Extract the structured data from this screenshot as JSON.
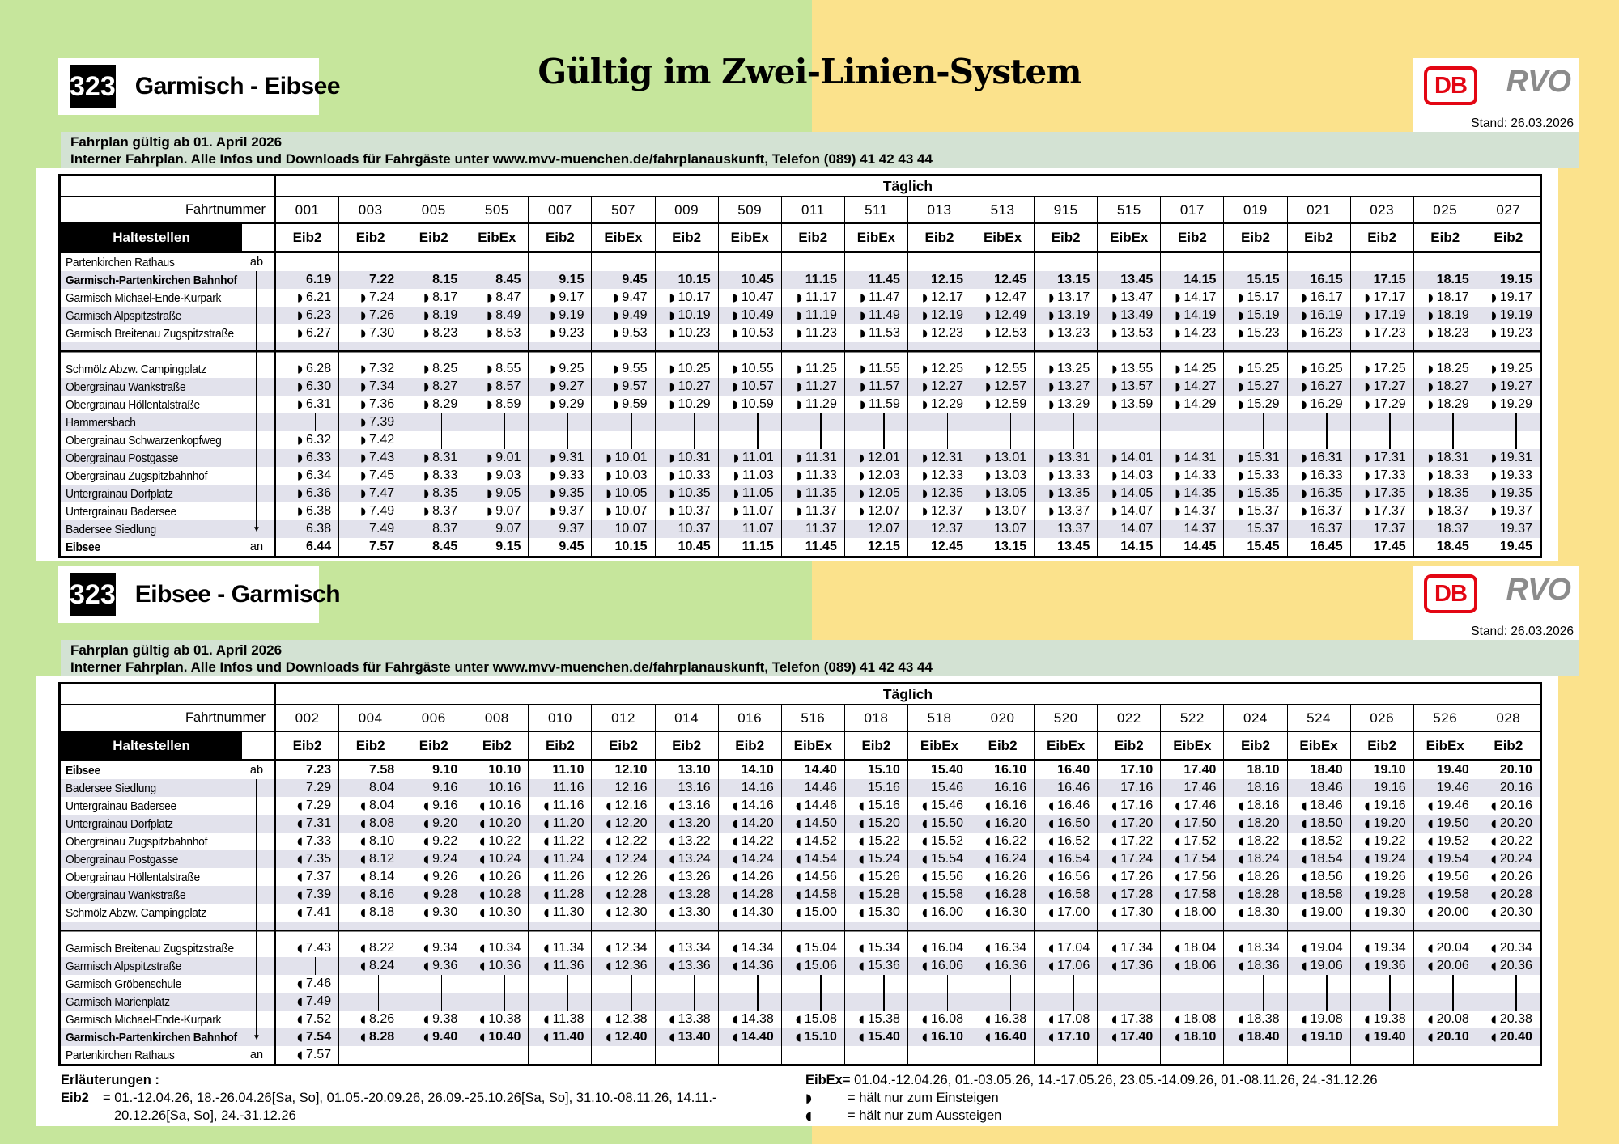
{
  "colors": {
    "green": "#c6e69c",
    "yellow": "#fbe28c",
    "sage": "#d3e2d3",
    "stripe": "#e2e2ec",
    "db_red": "#e30613",
    "rvo_gray": "#8b8b8b"
  },
  "header": {
    "big_title": "Gültig im Zwei-Linien-System"
  },
  "banner1": {
    "route_number": "323",
    "route_name": "Garmisch - Eibsee",
    "db_label": "DB",
    "rvo_label": "RVO",
    "stand": "Stand: 26.03.2026"
  },
  "banner2": {
    "route_number": "323",
    "route_name": "Eibsee - Garmisch",
    "db_label": "DB",
    "rvo_label": "RVO",
    "stand": "Stand: 26.03.2026"
  },
  "infobar": {
    "line1": "Fahrplan gültig ab 01. April 2026",
    "line2": "Interner Fahrplan. Alle Infos und Downloads für Fahrgäste unter www.mvv-muenchen.de/fahrplanauskunft, Telefon (089) 41 42 43 44"
  },
  "table1": {
    "daily_label": "Täglich",
    "fahrtnummer_label": "Fahrtnummer",
    "haltestellen_label": "Haltestellen",
    "trips": [
      "001",
      "003",
      "005",
      "505",
      "007",
      "507",
      "009",
      "509",
      "011",
      "511",
      "013",
      "513",
      "915",
      "515",
      "017",
      "019",
      "021",
      "023",
      "025",
      "027"
    ],
    "types": [
      "Eib2",
      "Eib2",
      "Eib2",
      "EibEx",
      "Eib2",
      "EibEx",
      "Eib2",
      "EibEx",
      "Eib2",
      "EibEx",
      "Eib2",
      "EibEx",
      "Eib2",
      "EibEx",
      "Eib2",
      "Eib2",
      "Eib2",
      "Eib2",
      "Eib2",
      "Eib2"
    ],
    "rows": [
      {
        "name": "Partenkirchen Rathaus",
        "dir": "ab",
        "bold": false,
        "cells": [
          "",
          "",
          "",
          "",
          "",
          "",
          "",
          "",
          "",
          "",
          "",
          "",
          "",
          "",
          "",
          "",
          "",
          "",
          "",
          ""
        ]
      },
      {
        "name": "Garmisch-Partenkirchen Bahnhof",
        "dir": "line",
        "bold": true,
        "cells": [
          "6.19",
          "7.22",
          "8.15",
          "8.45",
          "9.15",
          "9.45",
          "10.15",
          "10.45",
          "11.15",
          "11.45",
          "12.15",
          "12.45",
          "13.15",
          "13.45",
          "14.15",
          "15.15",
          "16.15",
          "17.15",
          "18.15",
          "19.15"
        ]
      },
      {
        "name": "Garmisch Michael-Ende-Kurpark",
        "dir": "line",
        "bold": false,
        "cells": [
          "◗6.21",
          "◗7.24",
          "◗8.17",
          "◗8.47",
          "◗9.17",
          "◗9.47",
          "◗10.17",
          "◗10.47",
          "◗11.17",
          "◗11.47",
          "◗12.17",
          "◗12.47",
          "◗13.17",
          "◗13.47",
          "◗14.17",
          "◗15.17",
          "◗16.17",
          "◗17.17",
          "◗18.17",
          "◗19.17"
        ]
      },
      {
        "name": "Garmisch Alpspitzstraße",
        "dir": "line",
        "bold": false,
        "cells": [
          "◗6.23",
          "◗7.26",
          "◗8.19",
          "◗8.49",
          "◗9.19",
          "◗9.49",
          "◗10.19",
          "◗10.49",
          "◗11.19",
          "◗11.49",
          "◗12.19",
          "◗12.49",
          "◗13.19",
          "◗13.49",
          "◗14.19",
          "◗15.19",
          "◗16.19",
          "◗17.19",
          "◗18.19",
          "◗19.19"
        ]
      },
      {
        "name": "Garmisch Breitenau Zugspitzstraße",
        "dir": "line",
        "bold": false,
        "cells": [
          "◗6.27",
          "◗7.30",
          "◗8.23",
          "◗8.53",
          "◗9.23",
          "◗9.53",
          "◗10.23",
          "◗10.53",
          "◗11.23",
          "◗11.53",
          "◗12.23",
          "◗12.53",
          "◗13.23",
          "◗13.53",
          "◗14.23",
          "◗15.23",
          "◗16.23",
          "◗17.23",
          "◗18.23",
          "◗19.23"
        ]
      },
      {
        "sep": true,
        "dir": "line"
      },
      {
        "name": "Schmölz Abzw. Campingplatz",
        "dir": "line",
        "bold": false,
        "cells": [
          "◗6.28",
          "◗7.32",
          "◗8.25",
          "◗8.55",
          "◗9.25",
          "◗9.55",
          "◗10.25",
          "◗10.55",
          "◗11.25",
          "◗11.55",
          "◗12.25",
          "◗12.55",
          "◗13.25",
          "◗13.55",
          "◗14.25",
          "◗15.25",
          "◗16.25",
          "◗17.25",
          "◗18.25",
          "◗19.25"
        ]
      },
      {
        "name": "Obergrainau Wankstraße",
        "dir": "line",
        "bold": false,
        "cells": [
          "◗6.30",
          "◗7.34",
          "◗8.27",
          "◗8.57",
          "◗9.27",
          "◗9.57",
          "◗10.27",
          "◗10.57",
          "◗11.27",
          "◗11.57",
          "◗12.27",
          "◗12.57",
          "◗13.27",
          "◗13.57",
          "◗14.27",
          "◗15.27",
          "◗16.27",
          "◗17.27",
          "◗18.27",
          "◗19.27"
        ]
      },
      {
        "name": "Obergrainau Höllentalstraße",
        "dir": "line",
        "bold": false,
        "cells": [
          "◗6.31",
          "◗7.36",
          "◗8.29",
          "◗8.59",
          "◗9.29",
          "◗9.59",
          "◗10.29",
          "◗10.59",
          "◗11.29",
          "◗11.59",
          "◗12.29",
          "◗12.59",
          "◗13.29",
          "◗13.59",
          "◗14.29",
          "◗15.29",
          "◗16.29",
          "◗17.29",
          "◗18.29",
          "◗19.29"
        ]
      },
      {
        "name": "Hammersbach",
        "dir": "line",
        "bold": false,
        "cells": [
          "|",
          "◗7.39",
          "|",
          "|",
          "|",
          "|",
          "|",
          "|",
          "|",
          "|",
          "|",
          "|",
          "|",
          "|",
          "|",
          "|",
          "|",
          "|",
          "|",
          "|"
        ]
      },
      {
        "name": "Obergrainau Schwarzenkopfweg",
        "dir": "line",
        "bold": false,
        "cells": [
          "◗6.32",
          "◗7.42",
          "|",
          "|",
          "|",
          "|",
          "|",
          "|",
          "|",
          "|",
          "|",
          "|",
          "|",
          "|",
          "|",
          "|",
          "|",
          "|",
          "|",
          "|"
        ]
      },
      {
        "name": "Obergrainau Postgasse",
        "dir": "line",
        "bold": false,
        "cells": [
          "◗6.33",
          "◗7.43",
          "◗8.31",
          "◗9.01",
          "◗9.31",
          "◗10.01",
          "◗10.31",
          "◗11.01",
          "◗11.31",
          "◗12.01",
          "◗12.31",
          "◗13.01",
          "◗13.31",
          "◗14.01",
          "◗14.31",
          "◗15.31",
          "◗16.31",
          "◗17.31",
          "◗18.31",
          "◗19.31"
        ]
      },
      {
        "name": "Obergrainau Zugspitzbahnhof",
        "dir": "line",
        "bold": false,
        "cells": [
          "◗6.34",
          "◗7.45",
          "◗8.33",
          "◗9.03",
          "◗9.33",
          "◗10.03",
          "◗10.33",
          "◗11.03",
          "◗11.33",
          "◗12.03",
          "◗12.33",
          "◗13.03",
          "◗13.33",
          "◗14.03",
          "◗14.33",
          "◗15.33",
          "◗16.33",
          "◗17.33",
          "◗18.33",
          "◗19.33"
        ]
      },
      {
        "name": "Untergrainau Dorfplatz",
        "dir": "line",
        "bold": false,
        "cells": [
          "◗6.36",
          "◗7.47",
          "◗8.35",
          "◗9.05",
          "◗9.35",
          "◗10.05",
          "◗10.35",
          "◗11.05",
          "◗11.35",
          "◗12.05",
          "◗12.35",
          "◗13.05",
          "◗13.35",
          "◗14.05",
          "◗14.35",
          "◗15.35",
          "◗16.35",
          "◗17.35",
          "◗18.35",
          "◗19.35"
        ]
      },
      {
        "name": "Untergrainau Badersee",
        "dir": "line",
        "bold": false,
        "cells": [
          "◗6.38",
          "◗7.49",
          "◗8.37",
          "◗9.07",
          "◗9.37",
          "◗10.07",
          "◗10.37",
          "◗11.07",
          "◗11.37",
          "◗12.07",
          "◗12.37",
          "◗13.07",
          "◗13.37",
          "◗14.07",
          "◗14.37",
          "◗15.37",
          "◗16.37",
          "◗17.37",
          "◗18.37",
          "◗19.37"
        ]
      },
      {
        "name": "Badersee Siedlung",
        "dir": "arrow",
        "bold": false,
        "cells": [
          "6.38",
          "7.49",
          "8.37",
          "9.07",
          "9.37",
          "10.07",
          "10.37",
          "11.07",
          "11.37",
          "12.07",
          "12.37",
          "13.07",
          "13.37",
          "14.07",
          "14.37",
          "15.37",
          "16.37",
          "17.37",
          "18.37",
          "19.37"
        ]
      },
      {
        "name": "Eibsee",
        "dir": "an",
        "bold": true,
        "cells": [
          "6.44",
          "7.57",
          "8.45",
          "9.15",
          "9.45",
          "10.15",
          "10.45",
          "11.15",
          "11.45",
          "12.15",
          "12.45",
          "13.15",
          "13.45",
          "14.15",
          "14.45",
          "15.45",
          "16.45",
          "17.45",
          "18.45",
          "19.45"
        ]
      }
    ]
  },
  "table2": {
    "daily_label": "Täglich",
    "fahrtnummer_label": "Fahrtnummer",
    "haltestellen_label": "Haltestellen",
    "trips": [
      "002",
      "004",
      "006",
      "008",
      "010",
      "012",
      "014",
      "016",
      "516",
      "018",
      "518",
      "020",
      "520",
      "022",
      "522",
      "024",
      "524",
      "026",
      "526",
      "028"
    ],
    "types": [
      "Eib2",
      "Eib2",
      "Eib2",
      "Eib2",
      "Eib2",
      "Eib2",
      "Eib2",
      "Eib2",
      "EibEx",
      "Eib2",
      "EibEx",
      "Eib2",
      "EibEx",
      "Eib2",
      "EibEx",
      "Eib2",
      "EibEx",
      "Eib2",
      "EibEx",
      "Eib2"
    ],
    "rows": [
      {
        "name": "Eibsee",
        "dir": "ab",
        "bold": true,
        "cells": [
          "7.23",
          "7.58",
          "9.10",
          "10.10",
          "11.10",
          "12.10",
          "13.10",
          "14.10",
          "14.40",
          "15.10",
          "15.40",
          "16.10",
          "16.40",
          "17.10",
          "17.40",
          "18.10",
          "18.40",
          "19.10",
          "19.40",
          "20.10"
        ]
      },
      {
        "name": "Badersee Siedlung",
        "dir": "line",
        "bold": false,
        "cells": [
          "7.29",
          "8.04",
          "9.16",
          "10.16",
          "11.16",
          "12.16",
          "13.16",
          "14.16",
          "14.46",
          "15.16",
          "15.46",
          "16.16",
          "16.46",
          "17.16",
          "17.46",
          "18.16",
          "18.46",
          "19.16",
          "19.46",
          "20.16"
        ]
      },
      {
        "name": "Untergrainau Badersee",
        "dir": "line",
        "bold": false,
        "cells": [
          "◖7.29",
          "◖8.04",
          "◖9.16",
          "◖10.16",
          "◖11.16",
          "◖12.16",
          "◖13.16",
          "◖14.16",
          "◖14.46",
          "◖15.16",
          "◖15.46",
          "◖16.16",
          "◖16.46",
          "◖17.16",
          "◖17.46",
          "◖18.16",
          "◖18.46",
          "◖19.16",
          "◖19.46",
          "◖20.16"
        ]
      },
      {
        "name": "Untergrainau Dorfplatz",
        "dir": "line",
        "bold": false,
        "cells": [
          "◖7.31",
          "◖8.08",
          "◖9.20",
          "◖10.20",
          "◖11.20",
          "◖12.20",
          "◖13.20",
          "◖14.20",
          "◖14.50",
          "◖15.20",
          "◖15.50",
          "◖16.20",
          "◖16.50",
          "◖17.20",
          "◖17.50",
          "◖18.20",
          "◖18.50",
          "◖19.20",
          "◖19.50",
          "◖20.20"
        ]
      },
      {
        "name": "Obergrainau Zugspitzbahnhof",
        "dir": "line",
        "bold": false,
        "cells": [
          "◖7.33",
          "◖8.10",
          "◖9.22",
          "◖10.22",
          "◖11.22",
          "◖12.22",
          "◖13.22",
          "◖14.22",
          "◖14.52",
          "◖15.22",
          "◖15.52",
          "◖16.22",
          "◖16.52",
          "◖17.22",
          "◖17.52",
          "◖18.22",
          "◖18.52",
          "◖19.22",
          "◖19.52",
          "◖20.22"
        ]
      },
      {
        "name": "Obergrainau Postgasse",
        "dir": "line",
        "bold": false,
        "cells": [
          "◖7.35",
          "◖8.12",
          "◖9.24",
          "◖10.24",
          "◖11.24",
          "◖12.24",
          "◖13.24",
          "◖14.24",
          "◖14.54",
          "◖15.24",
          "◖15.54",
          "◖16.24",
          "◖16.54",
          "◖17.24",
          "◖17.54",
          "◖18.24",
          "◖18.54",
          "◖19.24",
          "◖19.54",
          "◖20.24"
        ]
      },
      {
        "name": "Obergrainau Höllentalstraße",
        "dir": "line",
        "bold": false,
        "cells": [
          "◖7.37",
          "◖8.14",
          "◖9.26",
          "◖10.26",
          "◖11.26",
          "◖12.26",
          "◖13.26",
          "◖14.26",
          "◖14.56",
          "◖15.26",
          "◖15.56",
          "◖16.26",
          "◖16.56",
          "◖17.26",
          "◖17.56",
          "◖18.26",
          "◖18.56",
          "◖19.26",
          "◖19.56",
          "◖20.26"
        ]
      },
      {
        "name": "Obergrainau Wankstraße",
        "dir": "line",
        "bold": false,
        "cells": [
          "◖7.39",
          "◖8.16",
          "◖9.28",
          "◖10.28",
          "◖11.28",
          "◖12.28",
          "◖13.28",
          "◖14.28",
          "◖14.58",
          "◖15.28",
          "◖15.58",
          "◖16.28",
          "◖16.58",
          "◖17.28",
          "◖17.58",
          "◖18.28",
          "◖18.58",
          "◖19.28",
          "◖19.58",
          "◖20.28"
        ]
      },
      {
        "name": "Schmölz Abzw. Campingplatz",
        "dir": "line",
        "bold": false,
        "cells": [
          "◖7.41",
          "◖8.18",
          "◖9.30",
          "◖10.30",
          "◖11.30",
          "◖12.30",
          "◖13.30",
          "◖14.30",
          "◖15.00",
          "◖15.30",
          "◖16.00",
          "◖16.30",
          "◖17.00",
          "◖17.30",
          "◖18.00",
          "◖18.30",
          "◖19.00",
          "◖19.30",
          "◖20.00",
          "◖20.30"
        ]
      },
      {
        "sep": true,
        "dir": "line"
      },
      {
        "name": "Garmisch Breitenau Zugspitzstraße",
        "dir": "line",
        "bold": false,
        "cells": [
          "◖7.43",
          "◖8.22",
          "◖9.34",
          "◖10.34",
          "◖11.34",
          "◖12.34",
          "◖13.34",
          "◖14.34",
          "◖15.04",
          "◖15.34",
          "◖16.04",
          "◖16.34",
          "◖17.04",
          "◖17.34",
          "◖18.04",
          "◖18.34",
          "◖19.04",
          "◖19.34",
          "◖20.04",
          "◖20.34"
        ]
      },
      {
        "name": "Garmisch Alpspitzstraße",
        "dir": "line",
        "bold": false,
        "cells": [
          "|",
          "◖8.24",
          "◖9.36",
          "◖10.36",
          "◖11.36",
          "◖12.36",
          "◖13.36",
          "◖14.36",
          "◖15.06",
          "◖15.36",
          "◖16.06",
          "◖16.36",
          "◖17.06",
          "◖17.36",
          "◖18.06",
          "◖18.36",
          "◖19.06",
          "◖19.36",
          "◖20.06",
          "◖20.36"
        ]
      },
      {
        "name": "Garmisch Gröbenschule",
        "dir": "line",
        "bold": false,
        "cells": [
          "◖7.46",
          "|",
          "|",
          "|",
          "|",
          "|",
          "|",
          "|",
          "|",
          "|",
          "|",
          "|",
          "|",
          "|",
          "|",
          "|",
          "|",
          "|",
          "|",
          "|"
        ]
      },
      {
        "name": "Garmisch Marienplatz",
        "dir": "line",
        "bold": false,
        "cells": [
          "◖7.49",
          "|",
          "|",
          "|",
          "|",
          "|",
          "|",
          "|",
          "|",
          "|",
          "|",
          "|",
          "|",
          "|",
          "|",
          "|",
          "|",
          "|",
          "|",
          "|"
        ]
      },
      {
        "name": "Garmisch Michael-Ende-Kurpark",
        "dir": "line",
        "bold": false,
        "cells": [
          "◖7.52",
          "◖8.26",
          "◖9.38",
          "◖10.38",
          "◖11.38",
          "◖12.38",
          "◖13.38",
          "◖14.38",
          "◖15.08",
          "◖15.38",
          "◖16.08",
          "◖16.38",
          "◖17.08",
          "◖17.38",
          "◖18.08",
          "◖18.38",
          "◖19.08",
          "◖19.38",
          "◖20.08",
          "◖20.38"
        ]
      },
      {
        "name": "Garmisch-Partenkirchen Bahnhof",
        "dir": "arrow",
        "bold": true,
        "cells": [
          "◖7.54",
          "◖8.28",
          "◖9.40",
          "◖10.40",
          "◖11.40",
          "◖12.40",
          "◖13.40",
          "◖14.40",
          "◖15.10",
          "◖15.40",
          "◖16.10",
          "◖16.40",
          "◖17.10",
          "◖17.40",
          "◖18.10",
          "◖18.40",
          "◖19.10",
          "◖19.40",
          "◖20.10",
          "◖20.40"
        ]
      },
      {
        "name": "Partenkirchen Rathaus",
        "dir": "an",
        "bold": false,
        "cells": [
          "◖7.57",
          "",
          "",
          "",
          "",
          "",
          "",
          "",
          "",
          "",
          "",
          "",
          "",
          "",
          "",
          "",
          "",
          "",
          "",
          ""
        ]
      }
    ]
  },
  "legend": {
    "heading": "Erläuterungen :",
    "eib2_key": "Eib2",
    "eib2_line1": "= 01.-12.04.26, 18.-26.04.26[Sa, So], 01.05.-20.09.26, 26.09.-25.10.26[Sa, So], 31.10.-08.11.26, 14.11.-",
    "eib2_line2": "20.12.26[Sa, So], 24.-31.12.26",
    "eibex_key": "EibEx=",
    "eibex_text": "01.04.-12.04.26, 01.-03.05.26, 14.-17.05.26, 23.05.-14.09.26, 01.-08.11.26, 24.-31.12.26",
    "board_sym": "◗",
    "board_text": "= hält nur zum Einsteigen",
    "alight_sym": "◖",
    "alight_text": "= hält nur zum Aussteigen"
  }
}
